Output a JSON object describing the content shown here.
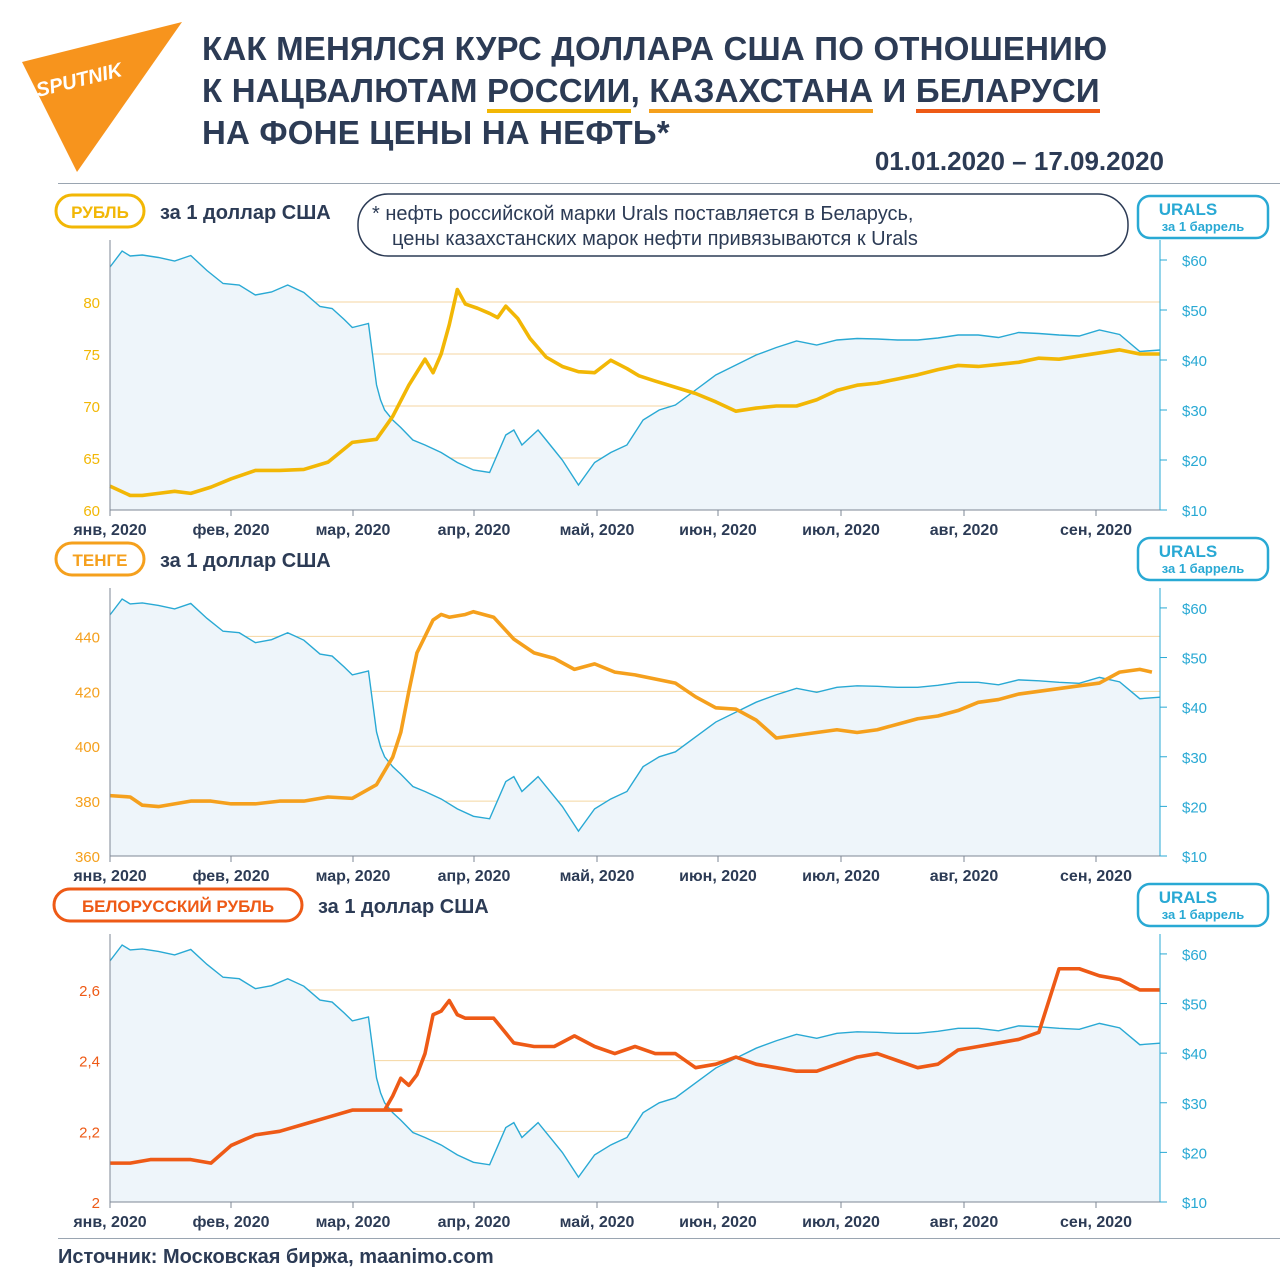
{
  "title": {
    "line1": "КАК МЕНЯЛСЯ КУРС ДОЛЛАРА США ПО ОТНОШЕНИЮ",
    "line2_a": "К НАЦВАЛЮТАМ ",
    "line2_ru": "РОССИИ",
    "line2_sep1": ", ",
    "line2_kz": "КАЗАХСТАНА",
    "line2_sep2": " И ",
    "line2_by": "БЕЛАРУСИ",
    "line3": "НА ФОНЕ ЦЕНЫ НА НЕФТЬ*"
  },
  "logo_text": "SPUTNIK",
  "date_range": "01.01.2020 – 17.09.2020",
  "note": {
    "line1": "* нефть российской марки Urals поставляется в Беларусь,",
    "line2": "цены казахстанских марок нефти привязываются к Urals"
  },
  "source": "Источник: Московская биржа, maanimo.com",
  "colors": {
    "ruble": "#f2b705",
    "tenge": "#f5a01d",
    "byr": "#ee5a16",
    "urals": "#29a9d4",
    "area": "#eef5fa",
    "text": "#2c3b55"
  },
  "chart_data": [
    {
      "type": "line",
      "badge": "РУБЛЬ",
      "unit_label": "за 1 доллар США",
      "right_badge": {
        "line1": "URALS",
        "line2": "за 1 баррель"
      },
      "x_ticks": [
        "янв, 2020",
        "фев, 2020",
        "мар, 2020",
        "апр, 2020",
        "май, 2020",
        "июн, 2020",
        "июл, 2020",
        "авг, 2020",
        "сен, 2020"
      ],
      "y_left": {
        "ticks": [
          60,
          65,
          70,
          75,
          80
        ],
        "labels": [
          "60",
          "65",
          "70",
          "75",
          "80"
        ],
        "min": 60,
        "max": 85
      },
      "y_right": {
        "ticks": [
          10,
          20,
          30,
          40,
          50,
          60
        ],
        "labels": [
          "$10",
          "$20",
          "$30",
          "$40",
          "$50",
          "$60"
        ],
        "min": 10,
        "max": 62
      },
      "x_domain": [
        0,
        260
      ],
      "series": [
        {
          "name": "РУБЛЬ",
          "axis": "left",
          "x": [
            0,
            5,
            8,
            12,
            16,
            20,
            25,
            30,
            36,
            42,
            48,
            54,
            60,
            66,
            70,
            74,
            78,
            80,
            82,
            84,
            86,
            88,
            91,
            94,
            96,
            98,
            101,
            104,
            108,
            112,
            116,
            120,
            124,
            128,
            131,
            135,
            140,
            145,
            150,
            155,
            160,
            165,
            170,
            175,
            180,
            185,
            190,
            195,
            200,
            205,
            210,
            215,
            220,
            225,
            230,
            235,
            240,
            245,
            250,
            255,
            260
          ],
          "y": [
            62.3,
            61.4,
            61.4,
            61.6,
            61.8,
            61.6,
            62.2,
            63.0,
            63.8,
            63.8,
            63.9,
            64.6,
            66.5,
            66.8,
            69.0,
            72.0,
            74.5,
            73.2,
            75.0,
            77.8,
            81.2,
            79.8,
            79.4,
            78.9,
            78.5,
            79.6,
            78.4,
            76.5,
            74.7,
            73.8,
            73.3,
            73.2,
            74.4,
            73.6,
            72.9,
            72.4,
            71.8,
            71.2,
            70.4,
            69.5,
            69.8,
            70.0,
            70.0,
            70.6,
            71.5,
            72.0,
            72.2,
            72.6,
            73.0,
            73.5,
            73.9,
            73.8,
            74.0,
            74.2,
            74.6,
            74.5,
            74.8,
            75.1,
            75.4,
            75.0,
            75.0
          ]
        },
        {
          "name": "URALS",
          "axis": "right",
          "x": [
            0,
            3,
            5,
            8,
            12,
            16,
            20,
            24,
            28,
            32,
            36,
            40,
            44,
            48,
            52,
            55,
            58,
            60,
            62,
            64,
            66,
            67,
            68,
            70,
            72,
            75,
            78,
            82,
            86,
            90,
            94,
            98,
            100,
            102,
            104,
            106,
            108,
            110,
            112,
            116,
            120,
            124,
            128,
            132,
            136,
            140,
            145,
            150,
            155,
            160,
            165,
            170,
            175,
            180,
            185,
            190,
            195,
            200,
            205,
            210,
            215,
            220,
            225,
            230,
            235,
            240,
            245,
            250,
            255,
            260
          ],
          "y": [
            58.6,
            61.8,
            60.8,
            61.0,
            60.5,
            59.8,
            60.9,
            57.9,
            55.3,
            55.0,
            53.0,
            53.6,
            55.0,
            53.5,
            50.7,
            50.3,
            48.1,
            46.5,
            46.9,
            47.3,
            35.0,
            32.0,
            30.0,
            28.0,
            26.5,
            24.0,
            23.0,
            21.5,
            19.5,
            18.0,
            17.5,
            25.0,
            26.0,
            23.0,
            24.5,
            26.0,
            24.0,
            22.0,
            20.0,
            15.0,
            19.5,
            21.5,
            23.0,
            28.0,
            30.0,
            31.0,
            34.0,
            37.0,
            39.0,
            41.0,
            42.5,
            43.8,
            43.0,
            44.0,
            44.3,
            44.2,
            44.0,
            44.0,
            44.4,
            45.0,
            45.0,
            44.5,
            45.5,
            45.3,
            45.0,
            44.8,
            46.0,
            45.1,
            41.7,
            42.0
          ]
        }
      ]
    },
    {
      "type": "line",
      "badge": "ТЕНГЕ",
      "unit_label": "за 1 доллар США",
      "right_badge": {
        "line1": "URALS",
        "line2": "за 1 баррель"
      },
      "x_ticks": [
        "янв, 2020",
        "фев, 2020",
        "мар, 2020",
        "апр, 2020",
        "май, 2020",
        "июн, 2020",
        "июл, 2020",
        "авг, 2020",
        "сен, 2020"
      ],
      "y_left": {
        "ticks": [
          360,
          380,
          400,
          420,
          440
        ],
        "labels": [
          "360",
          "380",
          "400",
          "420",
          "440"
        ],
        "min": 360,
        "max": 454
      },
      "y_right": {
        "ticks": [
          10,
          20,
          30,
          40,
          50,
          60
        ],
        "labels": [
          "$10",
          "$20",
          "$30",
          "$40",
          "$50",
          "$60"
        ],
        "min": 10,
        "max": 62
      },
      "x_domain": [
        0,
        260
      ],
      "series": [
        {
          "name": "ТЕНГЕ",
          "axis": "left",
          "x": [
            0,
            5,
            8,
            12,
            16,
            20,
            25,
            30,
            36,
            42,
            48,
            54,
            60,
            66,
            70,
            72,
            74,
            76,
            78,
            80,
            82,
            84,
            86,
            88,
            90,
            95,
            100,
            105,
            110,
            115,
            120,
            125,
            130,
            135,
            140,
            145,
            150,
            155,
            160,
            165,
            170,
            175,
            180,
            185,
            190,
            195,
            200,
            205,
            210,
            215,
            220,
            225,
            230,
            235,
            240,
            245,
            250,
            255,
            258
          ],
          "y": [
            382.0,
            381.5,
            378.5,
            378.0,
            379.0,
            380.0,
            380.0,
            379.0,
            379.0,
            380.0,
            380.0,
            381.5,
            381.0,
            386.0,
            396.0,
            405.0,
            420.0,
            434.0,
            440.0,
            446.0,
            448.0,
            447.0,
            447.5,
            448.0,
            449.0,
            447.0,
            439.0,
            434.0,
            432.0,
            428.0,
            430.0,
            427.0,
            426.0,
            424.5,
            423.0,
            418.0,
            414.0,
            413.5,
            409.5,
            403.0,
            404.0,
            405.0,
            406.0,
            405.0,
            406.0,
            408.0,
            410.0,
            411.0,
            413.0,
            416.0,
            417.0,
            419.0,
            420.0,
            421.0,
            422.0,
            423.0,
            427.0,
            428.0,
            427.0
          ]
        },
        {
          "name": "URALS",
          "axis": "right",
          "x": [
            0,
            3,
            5,
            8,
            12,
            16,
            20,
            24,
            28,
            32,
            36,
            40,
            44,
            48,
            52,
            55,
            58,
            60,
            62,
            64,
            66,
            67,
            68,
            70,
            72,
            75,
            78,
            82,
            86,
            90,
            94,
            98,
            100,
            102,
            104,
            106,
            108,
            110,
            112,
            116,
            120,
            124,
            128,
            132,
            136,
            140,
            145,
            150,
            155,
            160,
            165,
            170,
            175,
            180,
            185,
            190,
            195,
            200,
            205,
            210,
            215,
            220,
            225,
            230,
            235,
            240,
            245,
            250,
            255,
            260
          ],
          "y": [
            58.6,
            61.8,
            60.8,
            61.0,
            60.5,
            59.8,
            60.9,
            57.9,
            55.3,
            55.0,
            53.0,
            53.6,
            55.0,
            53.5,
            50.7,
            50.3,
            48.1,
            46.5,
            46.9,
            47.3,
            35.0,
            32.0,
            30.0,
            28.0,
            26.5,
            24.0,
            23.0,
            21.5,
            19.5,
            18.0,
            17.5,
            25.0,
            26.0,
            23.0,
            24.5,
            26.0,
            24.0,
            22.0,
            20.0,
            15.0,
            19.5,
            21.5,
            23.0,
            28.0,
            30.0,
            31.0,
            34.0,
            37.0,
            39.0,
            41.0,
            42.5,
            43.8,
            43.0,
            44.0,
            44.3,
            44.2,
            44.0,
            44.0,
            44.4,
            45.0,
            45.0,
            44.5,
            45.5,
            45.3,
            45.0,
            44.8,
            46.0,
            45.1,
            41.7,
            42.0
          ]
        }
      ]
    },
    {
      "type": "line",
      "badge": "БЕЛОРУССКИЙ РУБЛЬ",
      "unit_label": "за 1 доллар США",
      "right_badge": {
        "line1": "URALS",
        "line2": "за 1 баррель"
      },
      "x_ticks": [
        "янв, 2020",
        "фев, 2020",
        "мар, 2020",
        "апр, 2020",
        "май, 2020",
        "июн, 2020",
        "июл, 2020",
        "авг, 2020",
        "сен, 2020"
      ],
      "y_left": {
        "ticks": [
          2,
          2.2,
          2.4,
          2.6
        ],
        "labels": [
          "2",
          "2,2",
          "2,4",
          "2,6"
        ],
        "min": 2,
        "max": 2.73
      },
      "y_right": {
        "ticks": [
          10,
          20,
          30,
          40,
          50,
          60
        ],
        "labels": [
          "$10",
          "$20",
          "$30",
          "$40",
          "$50",
          "$60"
        ],
        "min": 10,
        "max": 62
      },
      "x_domain": [
        0,
        260
      ],
      "series": [
        {
          "name": "БЕЛОРУССКИЙ РУБЛЬ",
          "axis": "left",
          "x": [
            0,
            5,
            10,
            15,
            20,
            25,
            30,
            36,
            42,
            48,
            54,
            60,
            66,
            72,
            68,
            70,
            72,
            74,
            76,
            78,
            80,
            82,
            84,
            86,
            88,
            90,
            95,
            100,
            105,
            110,
            115,
            120,
            125,
            130,
            135,
            140,
            145,
            150,
            155,
            160,
            165,
            170,
            175,
            180,
            185,
            190,
            195,
            200,
            205,
            210,
            215,
            220,
            225,
            230,
            235,
            240,
            245,
            250,
            255,
            260
          ],
          "y": [
            2.11,
            2.11,
            2.12,
            2.12,
            2.12,
            2.11,
            2.16,
            2.19,
            2.2,
            2.22,
            2.24,
            2.26,
            2.26,
            2.26,
            2.26,
            2.3,
            2.35,
            2.33,
            2.36,
            2.42,
            2.53,
            2.54,
            2.57,
            2.53,
            2.52,
            2.52,
            2.52,
            2.45,
            2.44,
            2.44,
            2.47,
            2.44,
            2.42,
            2.44,
            2.42,
            2.42,
            2.38,
            2.39,
            2.41,
            2.39,
            2.38,
            2.37,
            2.37,
            2.39,
            2.41,
            2.42,
            2.4,
            2.38,
            2.39,
            2.43,
            2.44,
            2.45,
            2.46,
            2.48,
            2.66,
            2.66,
            2.64,
            2.63,
            2.6,
            2.6
          ]
        },
        {
          "name": "URALS",
          "axis": "right",
          "x": [
            0,
            3,
            5,
            8,
            12,
            16,
            20,
            24,
            28,
            32,
            36,
            40,
            44,
            48,
            52,
            55,
            58,
            60,
            62,
            64,
            66,
            67,
            68,
            70,
            72,
            75,
            78,
            82,
            86,
            90,
            94,
            98,
            100,
            102,
            104,
            106,
            108,
            110,
            112,
            116,
            120,
            124,
            128,
            132,
            136,
            140,
            145,
            150,
            155,
            160,
            165,
            170,
            175,
            180,
            185,
            190,
            195,
            200,
            205,
            210,
            215,
            220,
            225,
            230,
            235,
            240,
            245,
            250,
            255,
            260
          ],
          "y": [
            58.6,
            61.8,
            60.8,
            61.0,
            60.5,
            59.8,
            60.9,
            57.9,
            55.3,
            55.0,
            53.0,
            53.6,
            55.0,
            53.5,
            50.7,
            50.3,
            48.1,
            46.5,
            46.9,
            47.3,
            35.0,
            32.0,
            30.0,
            28.0,
            26.5,
            24.0,
            23.0,
            21.5,
            19.5,
            18.0,
            17.5,
            25.0,
            26.0,
            23.0,
            24.5,
            26.0,
            24.0,
            22.0,
            20.0,
            15.0,
            19.5,
            21.5,
            23.0,
            28.0,
            30.0,
            31.0,
            34.0,
            37.0,
            39.0,
            41.0,
            42.5,
            43.8,
            43.0,
            44.0,
            44.3,
            44.2,
            44.0,
            44.0,
            44.4,
            45.0,
            45.0,
            44.5,
            45.5,
            45.3,
            45.0,
            44.8,
            46.0,
            45.1,
            41.7,
            42.0
          ]
        }
      ]
    }
  ]
}
